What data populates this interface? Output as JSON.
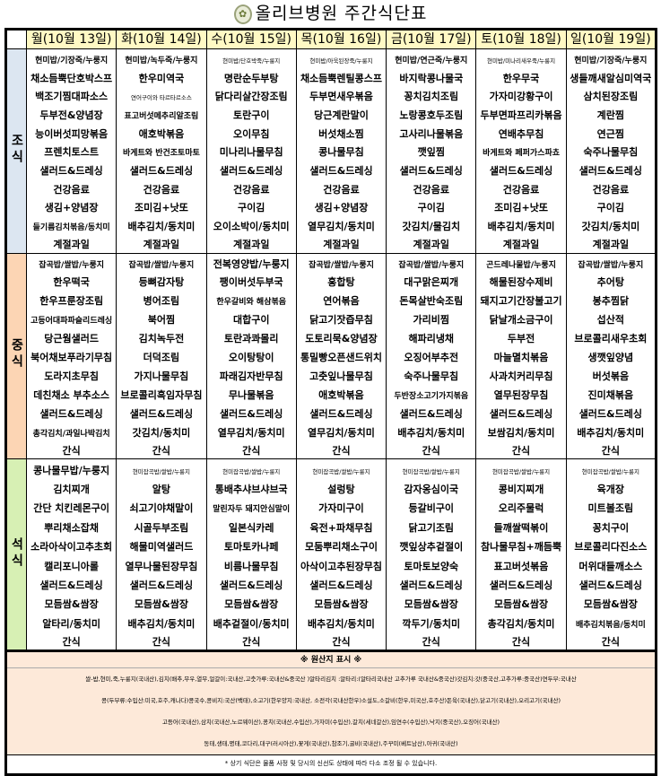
{
  "header": {
    "title": "올리브병원 주간식단표"
  },
  "days": [
    "월(10월 13일)",
    "화(10월 14일)",
    "수(10월 15일)",
    "목(10월 16일)",
    "금(10월 17일)",
    "토(10월 18일)",
    "일(10월 19일)"
  ],
  "meals": [
    {
      "label": "조식",
      "color": "#dce6f1",
      "rows": [
        [
          "현미밥/기장죽/누룽지",
          "현미밥/녹두죽/누룽지",
          "현미밥/단호박죽/누룽지",
          "현미밥/아욱된장죽/누룽지",
          "현미밥/연근죽/누룽지",
          "현미밥/미나리새우죽/누룽지",
          "현미밥/기장죽/누룽지"
        ],
        [
          "채소듬뿍단호박스프",
          "한우미역국",
          "명란순두부탕",
          "채소듬뿍렌틸콩스프",
          "바지락콩나물국",
          "한우무국",
          "생들깨새알심미역국"
        ],
        [
          "백조기찜대파소스",
          "연어구이와 타르타르소스",
          "닭다리살간장조림",
          "두부면새우볶음",
          "꽁치김치조림",
          "가자미강황구이",
          "삼치된장조림"
        ],
        [
          "두부전&양념장",
          "표고버섯메추리알조림",
          "토란구이",
          "당근계란말이",
          "노랑콩호두조림",
          "두부면파프리카볶음",
          "계란찜"
        ],
        [
          "능이버섯피망볶음",
          "애호박볶음",
          "오이무침",
          "버섯채소찜",
          "고사리나물볶음",
          "연배추무침",
          "연근찜"
        ],
        [
          "프렌치토스트",
          "바게트와 반건조토마토",
          "미나리나물무침",
          "콩나물무침",
          "깻잎찜",
          "바게트와 페퍼가스파쵸",
          "숙주나물무침"
        ],
        [
          "샐러드&드레싱",
          "샐러드&드레싱",
          "샐러드&드레싱",
          "샐러드&드레싱",
          "샐러드&드레싱",
          "샐러드&드레싱",
          "샐러드&드레싱"
        ],
        [
          "건강음료",
          "건강음료",
          "건강음료",
          "건강음료",
          "건강음료",
          "건강음료",
          "건강음료"
        ],
        [
          "생김+양념장",
          "조미김+낫또",
          "구이김",
          "생김+양념장",
          "구이김",
          "조미김+낫또",
          "구이김"
        ],
        [
          "들기름김치볶음/동치미",
          "배추김치/동치미",
          "오이소박이/동치미",
          "열무김치/동치미",
          "갓김치/물김치",
          "배추김치/동치미",
          "갓김치/동치미"
        ],
        [
          "계절과일",
          "계절과일",
          "계절과일",
          "계절과일",
          "계절과일",
          "계절과일",
          "계절과일"
        ]
      ]
    },
    {
      "label": "중식",
      "color": "#fcd5b4",
      "rows": [
        [
          "잡곡밥/쌀밥/누룽지",
          "잡곡밥/쌀밥/누룽지",
          "전복영양밥/누룽지",
          "잡곡밥/쌀밥/누룽지",
          "잡곡밥/쌀밥/누룽지",
          "곤드레나물밥/누룽지",
          "잡곡밥/쌀밥/누룽지"
        ],
        [
          "한우떡국",
          "등뼈감자탕",
          "팽이버섯두부국",
          "홍합탕",
          "대구맑은찌개",
          "해물된장수제비",
          "추어탕"
        ],
        [
          "한우프룬장조림",
          "병어조림",
          "한우갈비와 해삼볶음",
          "연어볶음",
          "돈목살반숙조림",
          "돼지고기간장불고기",
          "봉추찜닭"
        ],
        [
          "고등어대파파슬리드레싱",
          "북어찜",
          "대합구이",
          "닭고기잣즙무침",
          "가리비찜",
          "닭날개소금구이",
          "섭산적"
        ],
        [
          "당근웜샐러드",
          "김치녹두전",
          "토란과콰몰리",
          "도토리묵&양념장",
          "해파리냉채",
          "두부전",
          "브로콜리새우초회"
        ],
        [
          "북어채보푸라기무침",
          "더덕조림",
          "오이탕탕이",
          "통밀빵오픈샌드위치",
          "오징어부추전",
          "마늘멸치볶음",
          "생깻잎양념"
        ],
        [
          "도라지초무침",
          "가지나물무침",
          "파래김자반무침",
          "고춧잎나물무침",
          "숙주나물무침",
          "사과치커리무침",
          "버섯볶음"
        ],
        [
          "데친채소 부추소스",
          "브로콜리흑임자무침",
          "무나물볶음",
          "애호박볶음",
          "두반장소고기가지볶음",
          "열무된장무침",
          "진미채볶음"
        ],
        [
          "샐러드&드레싱",
          "샐러드&드레싱",
          "샐러드&드레싱",
          "샐러드&드레싱",
          "샐러드&드레싱",
          "샐러드&드레싱",
          "샐러드&드레싱"
        ],
        [
          "총각김치/과일나박김치",
          "갓김치/동치미",
          "열무김치/동치미",
          "열무김치/동치미",
          "배추김치/동치미",
          "보쌈김치/동치미",
          "배추김치/동치미"
        ],
        [
          "간식",
          "간식",
          "간식",
          "간식",
          "간식",
          "간식",
          "간식"
        ]
      ]
    },
    {
      "label": "석식",
      "color": "#d7f0b4",
      "rows": [
        [
          "콩나물무밥/누룽지",
          "현미잡곡밥/쌀밥/누룽지",
          "현미잡곡밥/쌀밥/누룽지",
          "현미잡곡밥/쌀밥/누룽지",
          "현미잡곡밥/쌀밥/누룽지",
          "현미잡곡밥/쌀밥/누룽지",
          "현미잡곡밥/쌀밥/누룽지"
        ],
        [
          "김치찌개",
          "알탕",
          "통배추샤브샤브국",
          "설렁탕",
          "감자옹심이국",
          "콩비지찌개",
          "육개장"
        ],
        [
          "간단 치킨레몬구이",
          "쇠고기야채말이",
          "말린자두 돼지안심말이",
          "가자미구이",
          "등갈비구이",
          "오리주물럭",
          "미트볼조림"
        ],
        [
          "뿌리채소잡채",
          "시골두부조림",
          "일본식카레",
          "육전+파채무침",
          "닭고기조림",
          "들깨쌀떡볶이",
          "꽁치구이"
        ],
        [
          "소라아삭이고추초회",
          "해물미역샐러드",
          "토마토카나페",
          "모둠뿌리채소구이",
          "깻잎상추겉절이",
          "참나물무침+깨듬뿍",
          "브로콜리다진소스"
        ],
        [
          "캘리포니아롤",
          "열무나물된장무침",
          "비름나물무침",
          "아삭이고추된장무침",
          "토마토보양숙",
          "표고버섯볶음",
          "머위대들깨소스"
        ],
        [
          "샐러드&드레싱",
          "샐러드&드레싱",
          "샐러드&드레싱",
          "샐러드&드레싱",
          "샐러드&드레싱",
          "샐러드&드레싱",
          "샐러드&드레싱"
        ],
        [
          "모듬쌈&쌈장",
          "모듬쌈&쌈장",
          "모듬쌈&쌈장",
          "모듬쌈&쌈장",
          "모듬쌈&쌈장",
          "모듬쌈&쌈장",
          "모듬쌈&쌈장"
        ],
        [
          "알타리/동치미",
          "배추김치/동치미",
          "배추겉절이/동치미",
          "배추김치/동치미",
          "깍두기/동치미",
          "총각김치/동치미",
          "배추김치볶음/동치미"
        ],
        [
          "간식",
          "간식",
          "간식",
          "간식",
          "간식",
          "간식",
          "간식"
        ]
      ]
    }
  ],
  "origin": {
    "title": "※ 원산지 표시 ※",
    "lines": [
      "쌀-밥,현미,죽,누룽지(국내산),김치(배추,무우,열무,얼갈이:국내산,고춧가루:국내산&중국산 )알타리김치 :알타리:(알타리국내산 고추가루 국내산&중국산)갓김치:갓(중국산,고추가루:중국산)연두부:국내산",
      "콩(두부류:수입산:미국,호주,캐나다)콩국수,콩비지:국산(백태),소고기(한우양지:국내산, 소전각(국내산한우)소설도,소갈비(한우,미국산,호주산)돈육(국내산),닭고기(국내산),오리고기(국내산)",
      "고등어(국내산),삼치(국내산,노르웨이산),꽁치(국내산,수입산),가자미(수입산),갈치(세네갈산),임연수(수입산),낙지(중국산),오징어(국내산)",
      "동태,생태,명태,코다리,대구(러시아산),꽃게(국내산),참조기,굴비(국내산),주꾸미(베트남산),아귀(국내산)"
    ],
    "footnote": "* 상기 식단은 물품 사정 및 당시의 신선도 상태에 따라 다소 조정 될 수 있습니다."
  }
}
